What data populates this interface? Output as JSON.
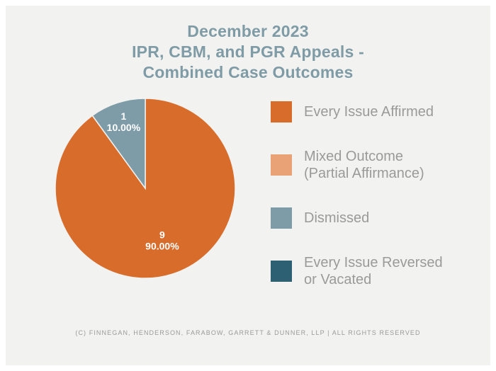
{
  "page": {
    "background": "#F2F2F1",
    "frame_color": "#FFFFFF"
  },
  "title": {
    "lines": [
      "December 2023",
      "IPR, CBM, and PGR Appeals -",
      "Combined Case Outcomes"
    ],
    "color": "#7F9CA6"
  },
  "chart_data": {
    "type": "pie",
    "title": "December 2023 IPR, CBM, and PGR Appeals - Combined Case Outcomes",
    "start_angle_deg": 0,
    "direction": "clockwise",
    "slices": [
      {
        "label": "Every Issue Affirmed",
        "count": 9,
        "value": 90,
        "percent_label": "90.00%",
        "color": "#D86C2B",
        "label_color": "#FFFFFF"
      },
      {
        "label": "Dismissed",
        "count": 1,
        "value": 10,
        "percent_label": "10.00%",
        "color": "#7D9CA7",
        "label_color": "#FFFFFF"
      }
    ],
    "legend_position": "right",
    "legend_entries": [
      "Every Issue Affirmed",
      "Mixed Outcome (Partial Affirmance)",
      "Dismissed",
      "Every Issue Reversed or Vacated"
    ]
  },
  "legend": {
    "text_color": "#9A9A9A",
    "items": [
      {
        "label": "Every Issue Affirmed",
        "color": "#D86C2B"
      },
      {
        "label": "Mixed Outcome\n(Partial Affirmance)",
        "color": "#E9A176"
      },
      {
        "label": "Dismissed",
        "color": "#7D9CA7"
      },
      {
        "label": "Every Issue Reversed\nor Vacated",
        "color": "#2D6072"
      }
    ]
  },
  "footer": {
    "text": "(C) FINNEGAN, HENDERSON, FARABOW, GARRETT & DUNNER, LLP | ALL RIGHTS RESERVED",
    "color": "#9A9A9A"
  }
}
